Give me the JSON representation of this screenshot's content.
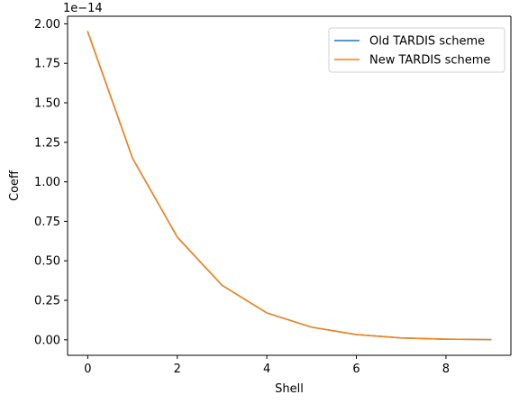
{
  "chart_data": {
    "type": "line",
    "title": "",
    "xlabel": "Shell",
    "ylabel": "Coeff",
    "offset_label": "1e−14",
    "x": [
      0,
      1,
      2,
      3,
      4,
      5,
      6,
      7,
      8,
      9
    ],
    "xlim": [
      -0.45,
      9.45
    ],
    "ylim": [
      -0.098,
      2.048
    ],
    "x_ticks": [
      0,
      2,
      4,
      6,
      8
    ],
    "x_tick_labels": [
      "0",
      "2",
      "4",
      "6",
      "8"
    ],
    "y_ticks": [
      0,
      0.25,
      0.5,
      0.75,
      1.0,
      1.25,
      1.5,
      1.75,
      2.0
    ],
    "y_tick_labels": [
      "0.00",
      "0.25",
      "0.50",
      "0.75",
      "1.00",
      "1.25",
      "1.50",
      "1.75",
      "2.00"
    ],
    "grid": false,
    "legend_position": "top-right",
    "series": [
      {
        "name": "Old TARDIS scheme",
        "color": "#1f77b4",
        "values": [
          1.95,
          1.15,
          0.65,
          0.345,
          0.17,
          0.08,
          0.033,
          0.012,
          0.004,
          0.001
        ]
      },
      {
        "name": "New TARDIS scheme",
        "color": "#ff7f0e",
        "values": [
          1.95,
          1.15,
          0.65,
          0.345,
          0.17,
          0.08,
          0.033,
          0.012,
          0.004,
          0.001
        ]
      }
    ]
  }
}
